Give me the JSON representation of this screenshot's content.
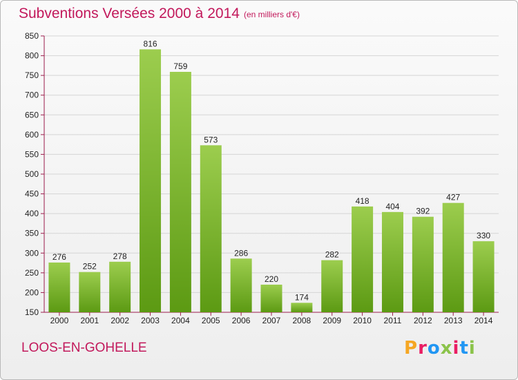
{
  "header": {
    "title": "Subventions Versées 2000 à 2014",
    "subtitle": "(en milliers d'€)"
  },
  "commune": "LOOS-EN-GOHELLE",
  "logo": {
    "text": "Proxiti",
    "letters": [
      "P",
      "r",
      "o",
      "x",
      "i",
      "t",
      "i"
    ],
    "colors": [
      "#f5a623",
      "#e91e63",
      "#2196f3",
      "#8bc34a",
      "#e91e63",
      "#2196f3",
      "#8bc34a"
    ]
  },
  "colors": {
    "bar_light": "#9ccd4e",
    "bar_dark": "#5c9a13",
    "title": "#c2185b",
    "axis": "#9c1b4b",
    "grid": "#d5d5d5"
  },
  "chart_data": {
    "type": "bar",
    "title": "Subventions Versées 2000 à 2014",
    "subtitle": "(en milliers d'€)",
    "categories": [
      "2000",
      "2001",
      "2002",
      "2003",
      "2004",
      "2005",
      "2006",
      "2007",
      "2008",
      "2009",
      "2010",
      "2011",
      "2012",
      "2013",
      "2014"
    ],
    "values": [
      276,
      252,
      278,
      816,
      759,
      573,
      286,
      220,
      174,
      282,
      418,
      404,
      392,
      427,
      330
    ],
    "ylim": [
      150,
      850
    ],
    "yticks": [
      150,
      200,
      250,
      300,
      350,
      400,
      450,
      500,
      550,
      600,
      650,
      700,
      750,
      800,
      850
    ],
    "grid": true,
    "xlabel": "",
    "ylabel": ""
  }
}
